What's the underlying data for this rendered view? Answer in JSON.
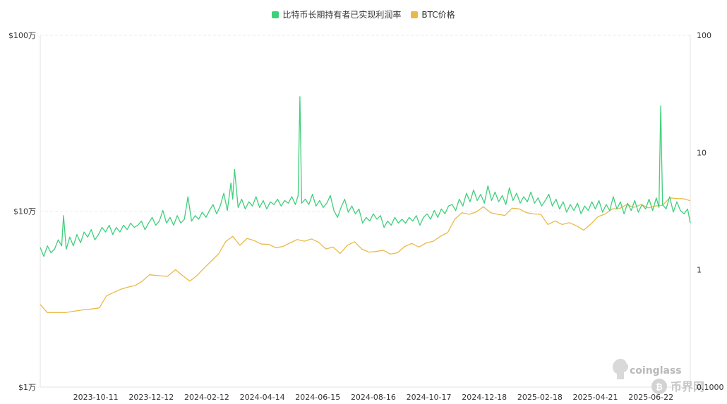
{
  "legend": {
    "series1_label": "比特币长期持有者已实现利润率",
    "series2_label": "BTC价格"
  },
  "colors": {
    "series1": "#3fcf7b",
    "series2": "#e9b949",
    "grid": "#ececec",
    "axis_text": "#333333"
  },
  "watermark": {
    "coinglass": "coinglass",
    "site": "币界网"
  },
  "chart_data": {
    "type": "line",
    "x_ticks": [
      "2023-10-11",
      "2023-12-12",
      "2024-02-12",
      "2024-04-14",
      "2024-06-15",
      "2024-08-16",
      "2024-10-17",
      "2024-12-18",
      "2025-02-18",
      "2025-04-21",
      "2025-06-22"
    ],
    "x_range": [
      "2023-08-10",
      "2025-08-05"
    ],
    "y_left": {
      "scale": "log",
      "range": [
        10000,
        1000000
      ],
      "ticks": [
        "$1万",
        "$10万",
        "$100万"
      ]
    },
    "y_right": {
      "scale": "log",
      "range": [
        0.1,
        100
      ],
      "ticks": [
        "0.1000",
        "1",
        "10",
        "100"
      ]
    },
    "series": [
      {
        "name": "比特币长期持有者已实现利润率",
        "axis": "right",
        "points": [
          [
            "2023-08-10",
            1.55
          ],
          [
            "2023-08-14",
            1.3
          ],
          [
            "2023-08-18",
            1.6
          ],
          [
            "2023-08-22",
            1.4
          ],
          [
            "2023-08-26",
            1.5
          ],
          [
            "2023-08-30",
            1.8
          ],
          [
            "2023-09-03",
            1.6
          ],
          [
            "2023-09-05",
            2.9
          ],
          [
            "2023-09-08",
            1.5
          ],
          [
            "2023-09-12",
            1.9
          ],
          [
            "2023-09-16",
            1.6
          ],
          [
            "2023-09-20",
            2.0
          ],
          [
            "2023-09-24",
            1.7
          ],
          [
            "2023-09-28",
            2.1
          ],
          [
            "2023-10-02",
            1.9
          ],
          [
            "2023-10-06",
            2.2
          ],
          [
            "2023-10-10",
            1.8
          ],
          [
            "2023-10-14",
            2.0
          ],
          [
            "2023-10-18",
            2.3
          ],
          [
            "2023-10-22",
            2.1
          ],
          [
            "2023-10-26",
            2.4
          ],
          [
            "2023-10-30",
            2.0
          ],
          [
            "2023-11-03",
            2.3
          ],
          [
            "2023-11-07",
            2.1
          ],
          [
            "2023-11-11",
            2.4
          ],
          [
            "2023-11-15",
            2.2
          ],
          [
            "2023-11-19",
            2.5
          ],
          [
            "2023-11-23",
            2.3
          ],
          [
            "2023-11-27",
            2.4
          ],
          [
            "2023-12-01",
            2.6
          ],
          [
            "2023-12-05",
            2.2
          ],
          [
            "2023-12-09",
            2.5
          ],
          [
            "2023-12-13",
            2.8
          ],
          [
            "2023-12-17",
            2.4
          ],
          [
            "2023-12-21",
            2.6
          ],
          [
            "2023-12-25",
            3.2
          ],
          [
            "2023-12-29",
            2.5
          ],
          [
            "2024-01-02",
            2.8
          ],
          [
            "2024-01-06",
            2.4
          ],
          [
            "2024-01-10",
            2.9
          ],
          [
            "2024-01-14",
            2.5
          ],
          [
            "2024-01-18",
            2.7
          ],
          [
            "2024-01-22",
            4.2
          ],
          [
            "2024-01-26",
            2.6
          ],
          [
            "2024-01-30",
            2.9
          ],
          [
            "2024-02-03",
            2.7
          ],
          [
            "2024-02-07",
            3.1
          ],
          [
            "2024-02-11",
            2.8
          ],
          [
            "2024-02-15",
            3.2
          ],
          [
            "2024-02-19",
            3.6
          ],
          [
            "2024-02-23",
            3.0
          ],
          [
            "2024-02-27",
            3.5
          ],
          [
            "2024-03-02",
            4.5
          ],
          [
            "2024-03-06",
            3.2
          ],
          [
            "2024-03-10",
            5.5
          ],
          [
            "2024-03-12",
            4.0
          ],
          [
            "2024-03-14",
            7.2
          ],
          [
            "2024-03-18",
            3.4
          ],
          [
            "2024-03-22",
            4.0
          ],
          [
            "2024-03-26",
            3.3
          ],
          [
            "2024-03-30",
            3.8
          ],
          [
            "2024-04-03",
            3.5
          ],
          [
            "2024-04-07",
            4.2
          ],
          [
            "2024-04-11",
            3.4
          ],
          [
            "2024-04-15",
            3.9
          ],
          [
            "2024-04-19",
            3.3
          ],
          [
            "2024-04-23",
            3.8
          ],
          [
            "2024-04-27",
            3.6
          ],
          [
            "2024-05-01",
            4.0
          ],
          [
            "2024-05-05",
            3.5
          ],
          [
            "2024-05-09",
            3.9
          ],
          [
            "2024-05-13",
            3.7
          ],
          [
            "2024-05-17",
            4.2
          ],
          [
            "2024-05-21",
            3.6
          ],
          [
            "2024-05-24",
            4.3
          ],
          [
            "2024-05-26",
            30
          ],
          [
            "2024-05-28",
            3.7
          ],
          [
            "2024-06-01",
            4.0
          ],
          [
            "2024-06-05",
            3.6
          ],
          [
            "2024-06-09",
            4.4
          ],
          [
            "2024-06-13",
            3.5
          ],
          [
            "2024-06-17",
            3.9
          ],
          [
            "2024-06-21",
            3.4
          ],
          [
            "2024-06-25",
            3.7
          ],
          [
            "2024-06-29",
            4.3
          ],
          [
            "2024-07-03",
            3.2
          ],
          [
            "2024-07-07",
            2.8
          ],
          [
            "2024-07-11",
            3.4
          ],
          [
            "2024-07-15",
            4.0
          ],
          [
            "2024-07-19",
            3.1
          ],
          [
            "2024-07-23",
            3.5
          ],
          [
            "2024-07-27",
            3.0
          ],
          [
            "2024-07-31",
            3.3
          ],
          [
            "2024-08-04",
            2.5
          ],
          [
            "2024-08-08",
            2.8
          ],
          [
            "2024-08-12",
            2.6
          ],
          [
            "2024-08-16",
            3.0
          ],
          [
            "2024-08-20",
            2.7
          ],
          [
            "2024-08-24",
            2.9
          ],
          [
            "2024-08-28",
            2.3
          ],
          [
            "2024-09-01",
            2.6
          ],
          [
            "2024-09-05",
            2.4
          ],
          [
            "2024-09-09",
            2.8
          ],
          [
            "2024-09-13",
            2.5
          ],
          [
            "2024-09-17",
            2.7
          ],
          [
            "2024-09-21",
            2.5
          ],
          [
            "2024-09-25",
            2.8
          ],
          [
            "2024-09-29",
            2.6
          ],
          [
            "2024-10-03",
            2.9
          ],
          [
            "2024-10-07",
            2.4
          ],
          [
            "2024-10-11",
            2.8
          ],
          [
            "2024-10-15",
            3.0
          ],
          [
            "2024-10-19",
            2.7
          ],
          [
            "2024-10-23",
            3.2
          ],
          [
            "2024-10-27",
            2.8
          ],
          [
            "2024-10-31",
            3.3
          ],
          [
            "2024-11-04",
            3.0
          ],
          [
            "2024-11-08",
            3.5
          ],
          [
            "2024-11-12",
            3.6
          ],
          [
            "2024-11-16",
            3.2
          ],
          [
            "2024-11-20",
            4.0
          ],
          [
            "2024-11-24",
            3.5
          ],
          [
            "2024-11-28",
            4.5
          ],
          [
            "2024-12-02",
            3.8
          ],
          [
            "2024-12-06",
            4.8
          ],
          [
            "2024-12-10",
            3.9
          ],
          [
            "2024-12-14",
            4.4
          ],
          [
            "2024-12-18",
            3.7
          ],
          [
            "2024-12-22",
            5.2
          ],
          [
            "2024-12-26",
            3.9
          ],
          [
            "2024-12-30",
            4.6
          ],
          [
            "2025-01-03",
            3.8
          ],
          [
            "2025-01-07",
            4.3
          ],
          [
            "2025-01-11",
            3.6
          ],
          [
            "2025-01-15",
            5.0
          ],
          [
            "2025-01-19",
            3.9
          ],
          [
            "2025-01-23",
            4.5
          ],
          [
            "2025-01-27",
            3.7
          ],
          [
            "2025-01-31",
            4.2
          ],
          [
            "2025-02-04",
            3.8
          ],
          [
            "2025-02-08",
            4.6
          ],
          [
            "2025-02-12",
            3.7
          ],
          [
            "2025-02-16",
            4.1
          ],
          [
            "2025-02-20",
            3.5
          ],
          [
            "2025-02-24",
            3.9
          ],
          [
            "2025-02-28",
            4.4
          ],
          [
            "2025-03-04",
            3.5
          ],
          [
            "2025-03-08",
            4.0
          ],
          [
            "2025-03-12",
            3.3
          ],
          [
            "2025-03-16",
            3.8
          ],
          [
            "2025-03-20",
            3.1
          ],
          [
            "2025-03-24",
            3.6
          ],
          [
            "2025-03-28",
            3.2
          ],
          [
            "2025-04-01",
            3.7
          ],
          [
            "2025-04-05",
            3.0
          ],
          [
            "2025-04-09",
            3.5
          ],
          [
            "2025-04-13",
            3.2
          ],
          [
            "2025-04-17",
            3.8
          ],
          [
            "2025-04-21",
            3.3
          ],
          [
            "2025-04-25",
            3.9
          ],
          [
            "2025-04-29",
            3.1
          ],
          [
            "2025-05-03",
            3.6
          ],
          [
            "2025-05-07",
            3.2
          ],
          [
            "2025-05-11",
            4.2
          ],
          [
            "2025-05-15",
            3.3
          ],
          [
            "2025-05-19",
            3.8
          ],
          [
            "2025-05-23",
            3.0
          ],
          [
            "2025-05-27",
            3.7
          ],
          [
            "2025-05-31",
            3.2
          ],
          [
            "2025-06-04",
            3.9
          ],
          [
            "2025-06-08",
            3.1
          ],
          [
            "2025-06-12",
            3.6
          ],
          [
            "2025-06-16",
            3.3
          ],
          [
            "2025-06-20",
            4.0
          ],
          [
            "2025-06-24",
            3.2
          ],
          [
            "2025-06-28",
            4.1
          ],
          [
            "2025-07-01",
            3.4
          ],
          [
            "2025-07-03",
            25
          ],
          [
            "2025-07-05",
            3.6
          ],
          [
            "2025-07-09",
            3.3
          ],
          [
            "2025-07-13",
            4.2
          ],
          [
            "2025-07-17",
            3.1
          ],
          [
            "2025-07-21",
            3.8
          ],
          [
            "2025-07-25",
            3.2
          ],
          [
            "2025-07-29",
            3.0
          ],
          [
            "2025-08-02",
            3.3
          ],
          [
            "2025-08-05",
            2.5
          ]
        ]
      },
      {
        "name": "BTC价格",
        "axis": "left",
        "points": [
          [
            "2023-08-10",
            29500
          ],
          [
            "2023-08-18",
            26500
          ],
          [
            "2023-08-28",
            26500
          ],
          [
            "2023-09-07",
            26500
          ],
          [
            "2023-09-17",
            27000
          ],
          [
            "2023-09-27",
            27500
          ],
          [
            "2023-10-07",
            27800
          ],
          [
            "2023-10-15",
            28200
          ],
          [
            "2023-10-23",
            33000
          ],
          [
            "2023-10-31",
            34500
          ],
          [
            "2023-11-08",
            36000
          ],
          [
            "2023-11-16",
            37000
          ],
          [
            "2023-11-24",
            37800
          ],
          [
            "2023-12-02",
            40000
          ],
          [
            "2023-12-10",
            43500
          ],
          [
            "2023-12-20",
            43000
          ],
          [
            "2023-12-30",
            42600
          ],
          [
            "2024-01-08",
            46500
          ],
          [
            "2024-01-16",
            43000
          ],
          [
            "2024-01-24",
            40000
          ],
          [
            "2024-02-01",
            43000
          ],
          [
            "2024-02-09",
            47500
          ],
          [
            "2024-02-17",
            52000
          ],
          [
            "2024-02-25",
            57000
          ],
          [
            "2024-03-04",
            67000
          ],
          [
            "2024-03-12",
            72000
          ],
          [
            "2024-03-20",
            64000
          ],
          [
            "2024-03-28",
            70000
          ],
          [
            "2024-04-05",
            68000
          ],
          [
            "2024-04-13",
            65000
          ],
          [
            "2024-04-21",
            64800
          ],
          [
            "2024-04-29",
            62000
          ],
          [
            "2024-05-07",
            63000
          ],
          [
            "2024-05-15",
            66000
          ],
          [
            "2024-05-23",
            69000
          ],
          [
            "2024-05-31",
            67500
          ],
          [
            "2024-06-08",
            69500
          ],
          [
            "2024-06-16",
            66500
          ],
          [
            "2024-06-24",
            61000
          ],
          [
            "2024-07-02",
            62500
          ],
          [
            "2024-07-10",
            57500
          ],
          [
            "2024-07-18",
            64000
          ],
          [
            "2024-07-26",
            67000
          ],
          [
            "2024-08-03",
            61000
          ],
          [
            "2024-08-11",
            58500
          ],
          [
            "2024-08-19",
            59000
          ],
          [
            "2024-08-27",
            60000
          ],
          [
            "2024-09-04",
            57000
          ],
          [
            "2024-09-12",
            58000
          ],
          [
            "2024-09-20",
            63000
          ],
          [
            "2024-09-28",
            65500
          ],
          [
            "2024-10-06",
            62500
          ],
          [
            "2024-10-14",
            66000
          ],
          [
            "2024-10-22",
            67500
          ],
          [
            "2024-10-30",
            72000
          ],
          [
            "2024-11-07",
            75500
          ],
          [
            "2024-11-15",
            90000
          ],
          [
            "2024-11-23",
            98000
          ],
          [
            "2024-12-01",
            96000
          ],
          [
            "2024-12-09",
            99000
          ],
          [
            "2024-12-17",
            106000
          ],
          [
            "2024-12-25",
            98000
          ],
          [
            "2025-01-02",
            96000
          ],
          [
            "2025-01-10",
            94500
          ],
          [
            "2025-01-18",
            104000
          ],
          [
            "2025-01-26",
            103000
          ],
          [
            "2025-02-03",
            98000
          ],
          [
            "2025-02-11",
            96500
          ],
          [
            "2025-02-19",
            96000
          ],
          [
            "2025-02-27",
            84000
          ],
          [
            "2025-03-07",
            88000
          ],
          [
            "2025-03-15",
            84000
          ],
          [
            "2025-03-23",
            86000
          ],
          [
            "2025-03-31",
            82500
          ],
          [
            "2025-04-08",
            78000
          ],
          [
            "2025-04-16",
            84500
          ],
          [
            "2025-04-24",
            93000
          ],
          [
            "2025-05-02",
            96500
          ],
          [
            "2025-05-10",
            103000
          ],
          [
            "2025-05-18",
            103500
          ],
          [
            "2025-05-26",
            109000
          ],
          [
            "2025-06-03",
            105000
          ],
          [
            "2025-06-11",
            109000
          ],
          [
            "2025-06-19",
            104500
          ],
          [
            "2025-06-27",
            107000
          ],
          [
            "2025-07-05",
            108000
          ],
          [
            "2025-07-13",
            119000
          ],
          [
            "2025-07-21",
            118000
          ],
          [
            "2025-07-29",
            117500
          ],
          [
            "2025-08-05",
            114500
          ]
        ]
      }
    ]
  }
}
